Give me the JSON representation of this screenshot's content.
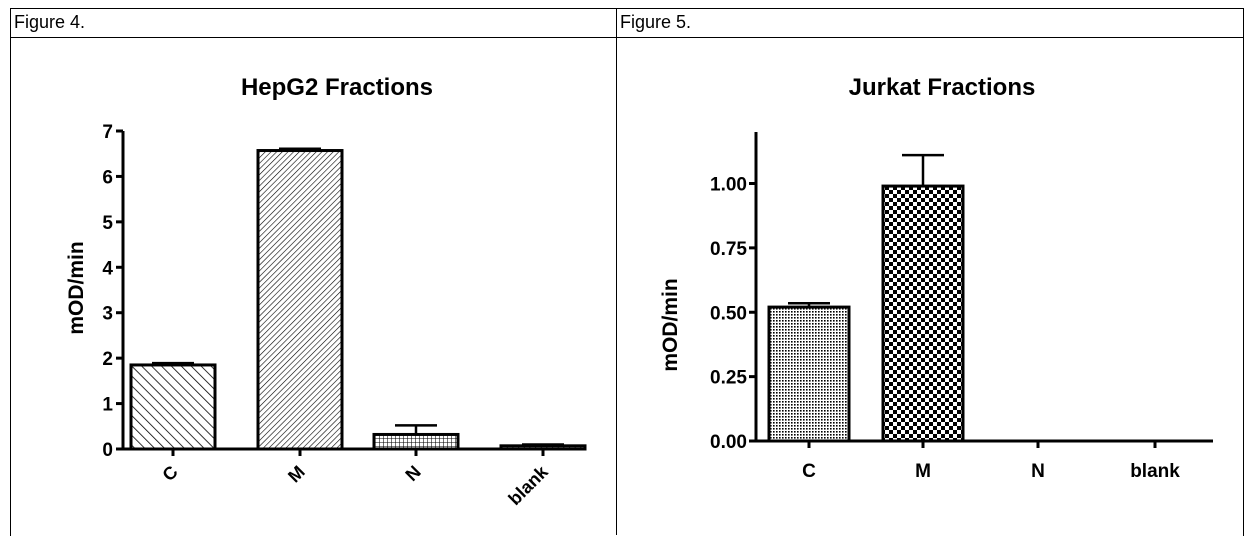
{
  "figures": [
    {
      "label": "Figure 4."
    },
    {
      "label": "Figure 5."
    }
  ],
  "colors": {
    "ink": "#000000",
    "background": "#ffffff"
  },
  "chart_data": [
    {
      "type": "bar",
      "title": "HepG2 Fractions",
      "xlabel": "",
      "ylabel": "mOD/min",
      "categories": [
        "C",
        "M",
        "N",
        "blank"
      ],
      "values": [
        1.85,
        6.57,
        0.32,
        0.07
      ],
      "errors": [
        0.04,
        0.04,
        0.2,
        0.03
      ],
      "patterns": [
        "diag-wide",
        "diag-fine",
        "grid",
        "diag-fine"
      ],
      "ylim": [
        0,
        7
      ],
      "yticks": [
        "0",
        "1",
        "2",
        "3",
        "4",
        "5",
        "6",
        "7"
      ],
      "x_tick_rotation": "rotated",
      "grid": false,
      "legend": "none"
    },
    {
      "type": "bar",
      "title": "Jurkat Fractions",
      "xlabel": "",
      "ylabel": "mOD/min",
      "categories": [
        "C",
        "M",
        "N",
        "blank"
      ],
      "values": [
        0.52,
        0.99,
        0,
        0
      ],
      "errors": [
        0.015,
        0.12,
        0,
        0
      ],
      "patterns": [
        "dots-fine",
        "checker",
        "none",
        "none"
      ],
      "ylim": [
        0,
        1.2
      ],
      "yticks": [
        "0.00",
        "0.25",
        "0.50",
        "0.75",
        "1.00"
      ],
      "x_tick_rotation": "horizontal",
      "grid": false,
      "legend": "none"
    }
  ]
}
